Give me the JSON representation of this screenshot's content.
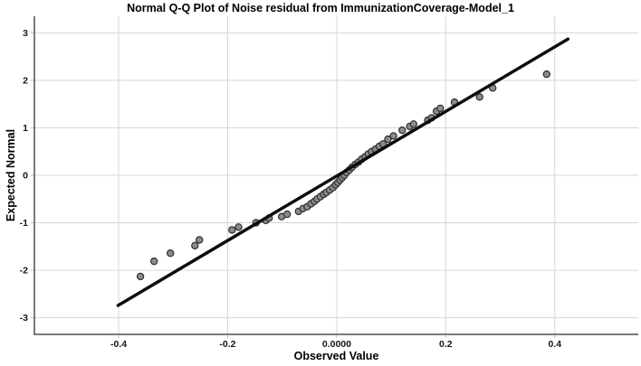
{
  "chart_data": {
    "type": "scatter",
    "title": "Normal Q-Q Plot of Noise residual from ImmunizationCoverage-Model_1",
    "xlabel": "Observed Value",
    "ylabel": "Expected Normal",
    "xlim": [
      -0.5545,
      0.5531
    ],
    "ylim": [
      -3.35,
      3.35
    ],
    "grid": true,
    "legend": "none",
    "x_ticks": [
      {
        "value": -0.4,
        "label": "-0.4"
      },
      {
        "value": -0.2,
        "label": "-0.2"
      },
      {
        "value": 0.0,
        "label": "0.0000"
      },
      {
        "value": 0.2,
        "label": "0.2"
      },
      {
        "value": 0.4,
        "label": "0.4"
      }
    ],
    "y_ticks": [
      {
        "value": 3,
        "label": "3"
      },
      {
        "value": 2,
        "label": "2"
      },
      {
        "value": 1,
        "label": "1"
      },
      {
        "value": 0,
        "label": "0"
      },
      {
        "value": -1,
        "label": "-1"
      },
      {
        "value": -2,
        "label": "-2"
      },
      {
        "value": -3,
        "label": "-3"
      }
    ],
    "series": [
      {
        "name": "observed-vs-expected-points",
        "type": "scatter",
        "points": [
          [
            -0.36,
            -2.13
          ],
          [
            -0.335,
            -1.81
          ],
          [
            -0.305,
            -1.64
          ],
          [
            -0.26,
            -1.48
          ],
          [
            -0.252,
            -1.36
          ],
          [
            -0.192,
            -1.15
          ],
          [
            -0.18,
            -1.09
          ],
          [
            -0.148,
            -1.0
          ],
          [
            -0.13,
            -0.95
          ],
          [
            -0.124,
            -0.9
          ],
          [
            -0.101,
            -0.87
          ],
          [
            -0.091,
            -0.82
          ],
          [
            -0.07,
            -0.76
          ],
          [
            -0.062,
            -0.7
          ],
          [
            -0.054,
            -0.66
          ],
          [
            -0.047,
            -0.6
          ],
          [
            -0.041,
            -0.55
          ],
          [
            -0.036,
            -0.5
          ],
          [
            -0.03,
            -0.45
          ],
          [
            -0.024,
            -0.4
          ],
          [
            -0.019,
            -0.36
          ],
          [
            -0.013,
            -0.31
          ],
          [
            -0.007,
            -0.26
          ],
          [
            -0.002,
            -0.2
          ],
          [
            0.002,
            -0.15
          ],
          [
            0.006,
            -0.1
          ],
          [
            0.01,
            -0.05
          ],
          [
            0.014,
            0.0
          ],
          [
            0.018,
            0.06
          ],
          [
            0.023,
            0.11
          ],
          [
            0.028,
            0.17
          ],
          [
            0.034,
            0.23
          ],
          [
            0.04,
            0.28
          ],
          [
            0.046,
            0.34
          ],
          [
            0.052,
            0.39
          ],
          [
            0.058,
            0.45
          ],
          [
            0.064,
            0.5
          ],
          [
            0.071,
            0.55
          ],
          [
            0.078,
            0.61
          ],
          [
            0.085,
            0.66
          ],
          [
            0.094,
            0.76
          ],
          [
            0.104,
            0.83
          ],
          [
            0.12,
            0.95
          ],
          [
            0.134,
            1.03
          ],
          [
            0.141,
            1.08
          ],
          [
            0.167,
            1.16
          ],
          [
            0.174,
            1.21
          ],
          [
            0.183,
            1.35
          ],
          [
            0.19,
            1.41
          ],
          [
            0.216,
            1.54
          ],
          [
            0.262,
            1.65
          ],
          [
            0.286,
            1.84
          ],
          [
            0.385,
            2.13
          ]
        ]
      },
      {
        "name": "normal-reference-line",
        "type": "line",
        "points": [
          [
            -0.401,
            -2.74
          ],
          [
            0.424,
            2.87
          ]
        ]
      }
    ],
    "colors": {
      "background": "#ffffff",
      "grid": "#d6d6d6",
      "tick": "#bdbdbd",
      "axis": "#7a7a7a",
      "point_fill": "#8c8c8c",
      "point_stroke": "#2e2e2e",
      "line": "#0d0d0d",
      "text": "#161616"
    }
  }
}
